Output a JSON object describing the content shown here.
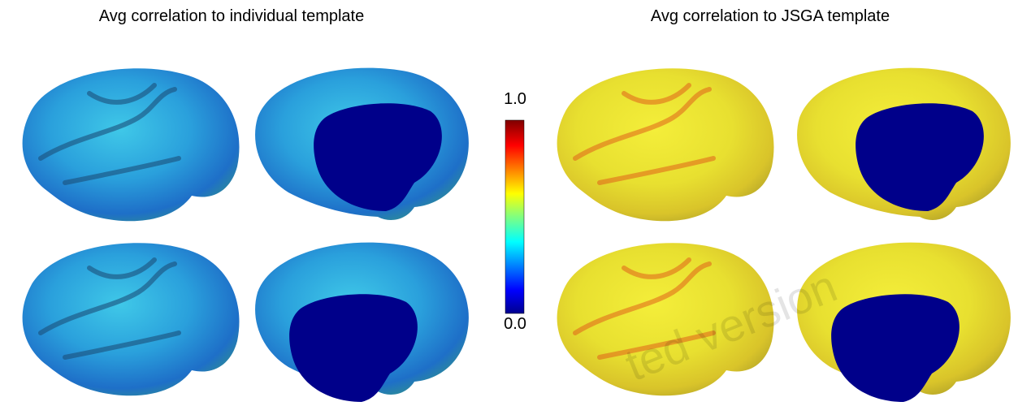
{
  "titles": {
    "left": "Avg correlation to individual template",
    "right": "Avg correlation to JSGA template"
  },
  "colorbar": {
    "max_label": "1.0",
    "min_label": "0.0"
  },
  "watermark": "ted version"
}
